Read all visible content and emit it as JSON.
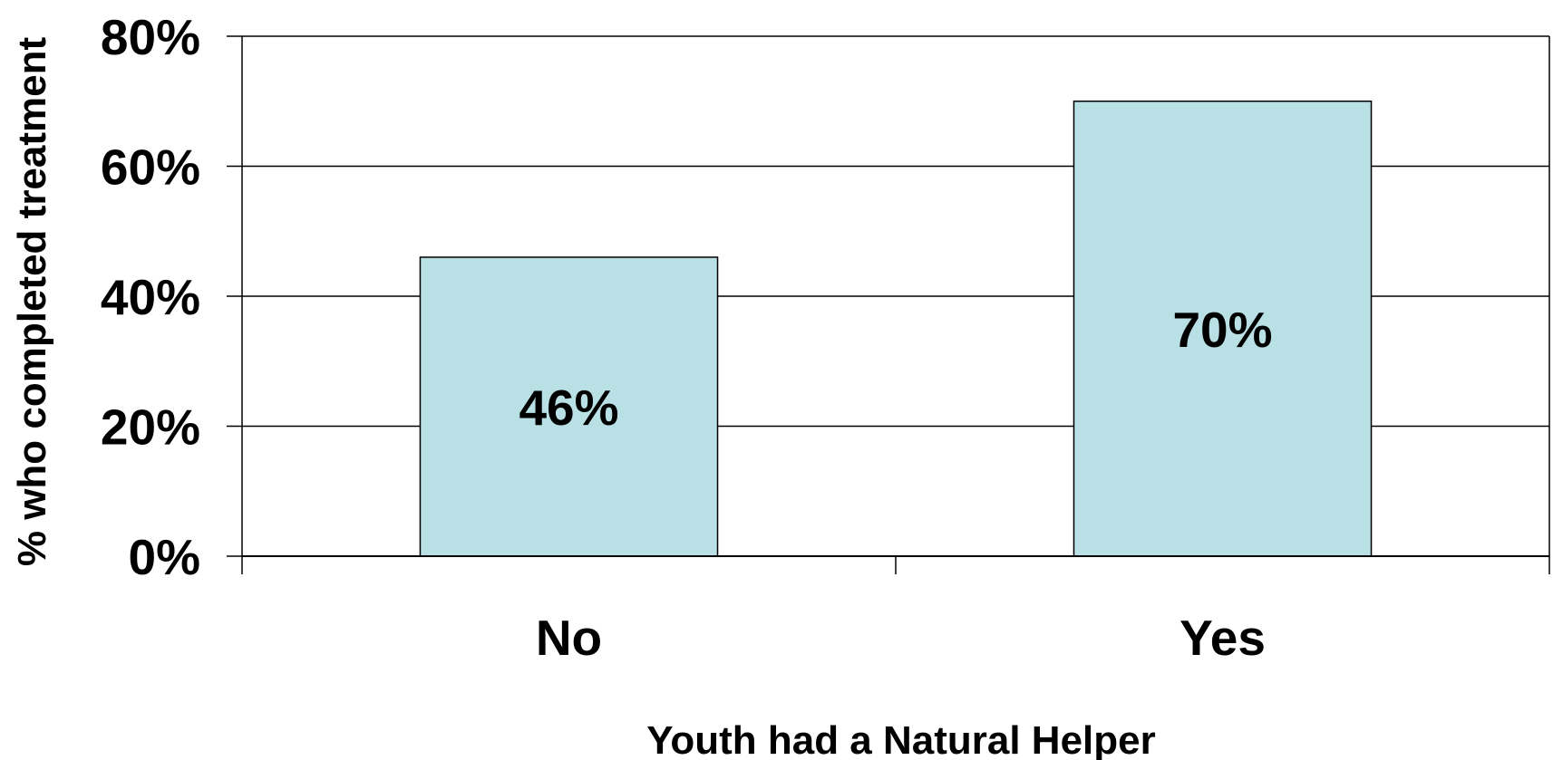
{
  "chart_data": {
    "type": "bar",
    "categories": [
      "No",
      "Yes"
    ],
    "values": [
      46,
      70
    ],
    "data_labels": [
      "46%",
      "70%"
    ],
    "title": "",
    "xlabel": "Youth had a Natural Helper",
    "ylabel": "% who completed treatment",
    "ylim": [
      0,
      80
    ],
    "yticks": [
      0,
      20,
      40,
      60,
      80
    ],
    "ytick_labels": [
      "0%",
      "20%",
      "40%",
      "60%",
      "80%"
    ],
    "grid": true,
    "legend": "none",
    "colors": {
      "bar_fill": "#b9e0e4",
      "bar_stroke": "#000000",
      "grid": "#000000",
      "text": "#000000",
      "background": "#ffffff"
    }
  }
}
